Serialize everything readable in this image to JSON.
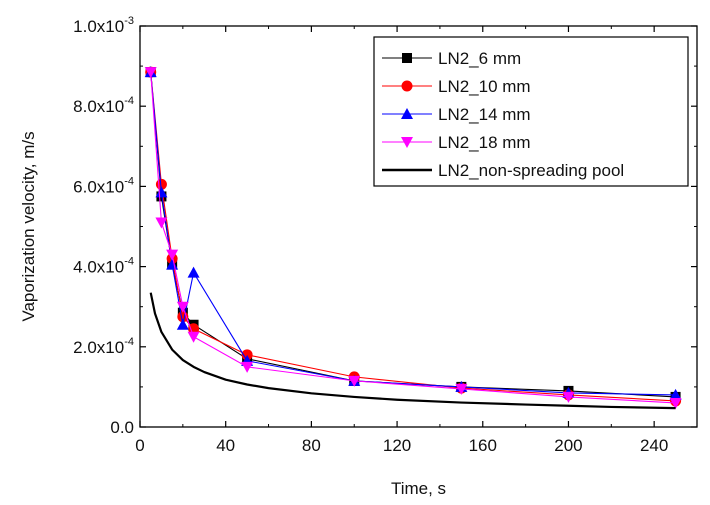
{
  "chart_data": {
    "type": "line",
    "xlabel": "Time, s",
    "ylabel": "Vaporization velocity, m/s",
    "xlim": [
      0,
      260
    ],
    "ylim": [
      0,
      0.001
    ],
    "x_ticks": [
      0,
      40,
      80,
      120,
      160,
      200,
      240
    ],
    "y_ticks": [
      {
        "value": 0.0,
        "mantissa": "0.0",
        "exp": ""
      },
      {
        "value": 0.0002,
        "mantissa": "2.0x10",
        "exp": "-4"
      },
      {
        "value": 0.0004,
        "mantissa": "4.0x10",
        "exp": "-4"
      },
      {
        "value": 0.0006,
        "mantissa": "6.0x10",
        "exp": "-4"
      },
      {
        "value": 0.0008,
        "mantissa": "8.0x10",
        "exp": "-4"
      },
      {
        "value": 0.001,
        "mantissa": "1.0x10",
        "exp": "-3"
      }
    ],
    "legend_position": "top-right",
    "grid": false,
    "series": [
      {
        "name": "LN2_6 mm",
        "color": "#000000",
        "marker": "square",
        "x": [
          5,
          10,
          15,
          20,
          25,
          50,
          100,
          150,
          200,
          250
        ],
        "y": [
          0.000885,
          0.000575,
          0.000405,
          0.000285,
          0.000255,
          0.00017,
          0.000115,
          0.0001,
          9e-05,
          7.5e-05
        ]
      },
      {
        "name": "LN2_10 mm",
        "color": "#ff0000",
        "marker": "circle",
        "x": [
          5,
          10,
          15,
          20,
          25,
          50,
          100,
          150,
          200,
          250
        ],
        "y": [
          0.000885,
          0.000605,
          0.00042,
          0.000275,
          0.000245,
          0.00018,
          0.000125,
          9.7e-05,
          8e-05,
          6.5e-05
        ]
      },
      {
        "name": "LN2_14 mm",
        "color": "#0000ff",
        "marker": "triangle-up",
        "x": [
          5,
          10,
          15,
          20,
          25,
          50,
          100,
          150,
          200,
          250
        ],
        "y": [
          0.000885,
          0.000585,
          0.000405,
          0.000255,
          0.000385,
          0.000165,
          0.000115,
          0.0001,
          8.5e-05,
          8e-05
        ]
      },
      {
        "name": "LN2_18 mm",
        "color": "#ff00ff",
        "marker": "triangle-down",
        "x": [
          5,
          10,
          15,
          20,
          25,
          50,
          100,
          150,
          200,
          250
        ],
        "y": [
          0.000885,
          0.00051,
          0.00043,
          0.0003,
          0.000225,
          0.00015,
          0.000115,
          9.5e-05,
          7.5e-05,
          6e-05
        ]
      },
      {
        "name": "LN2_non-spreading pool",
        "color": "#000000",
        "marker": "none",
        "curve": true,
        "x": [
          5,
          7,
          10,
          15,
          20,
          25,
          30,
          40,
          50,
          60,
          80,
          100,
          120,
          150,
          180,
          200,
          220,
          250
        ],
        "y": [
          0.000335,
          0.000283,
          0.000237,
          0.000193,
          0.000167,
          0.00015,
          0.000137,
          0.000118,
          0.000106,
          9.7e-05,
          8.4e-05,
          7.5e-05,
          6.8e-05,
          6.1e-05,
          5.6e-05,
          5.3e-05,
          5e-05,
          4.7e-05
        ]
      }
    ]
  }
}
